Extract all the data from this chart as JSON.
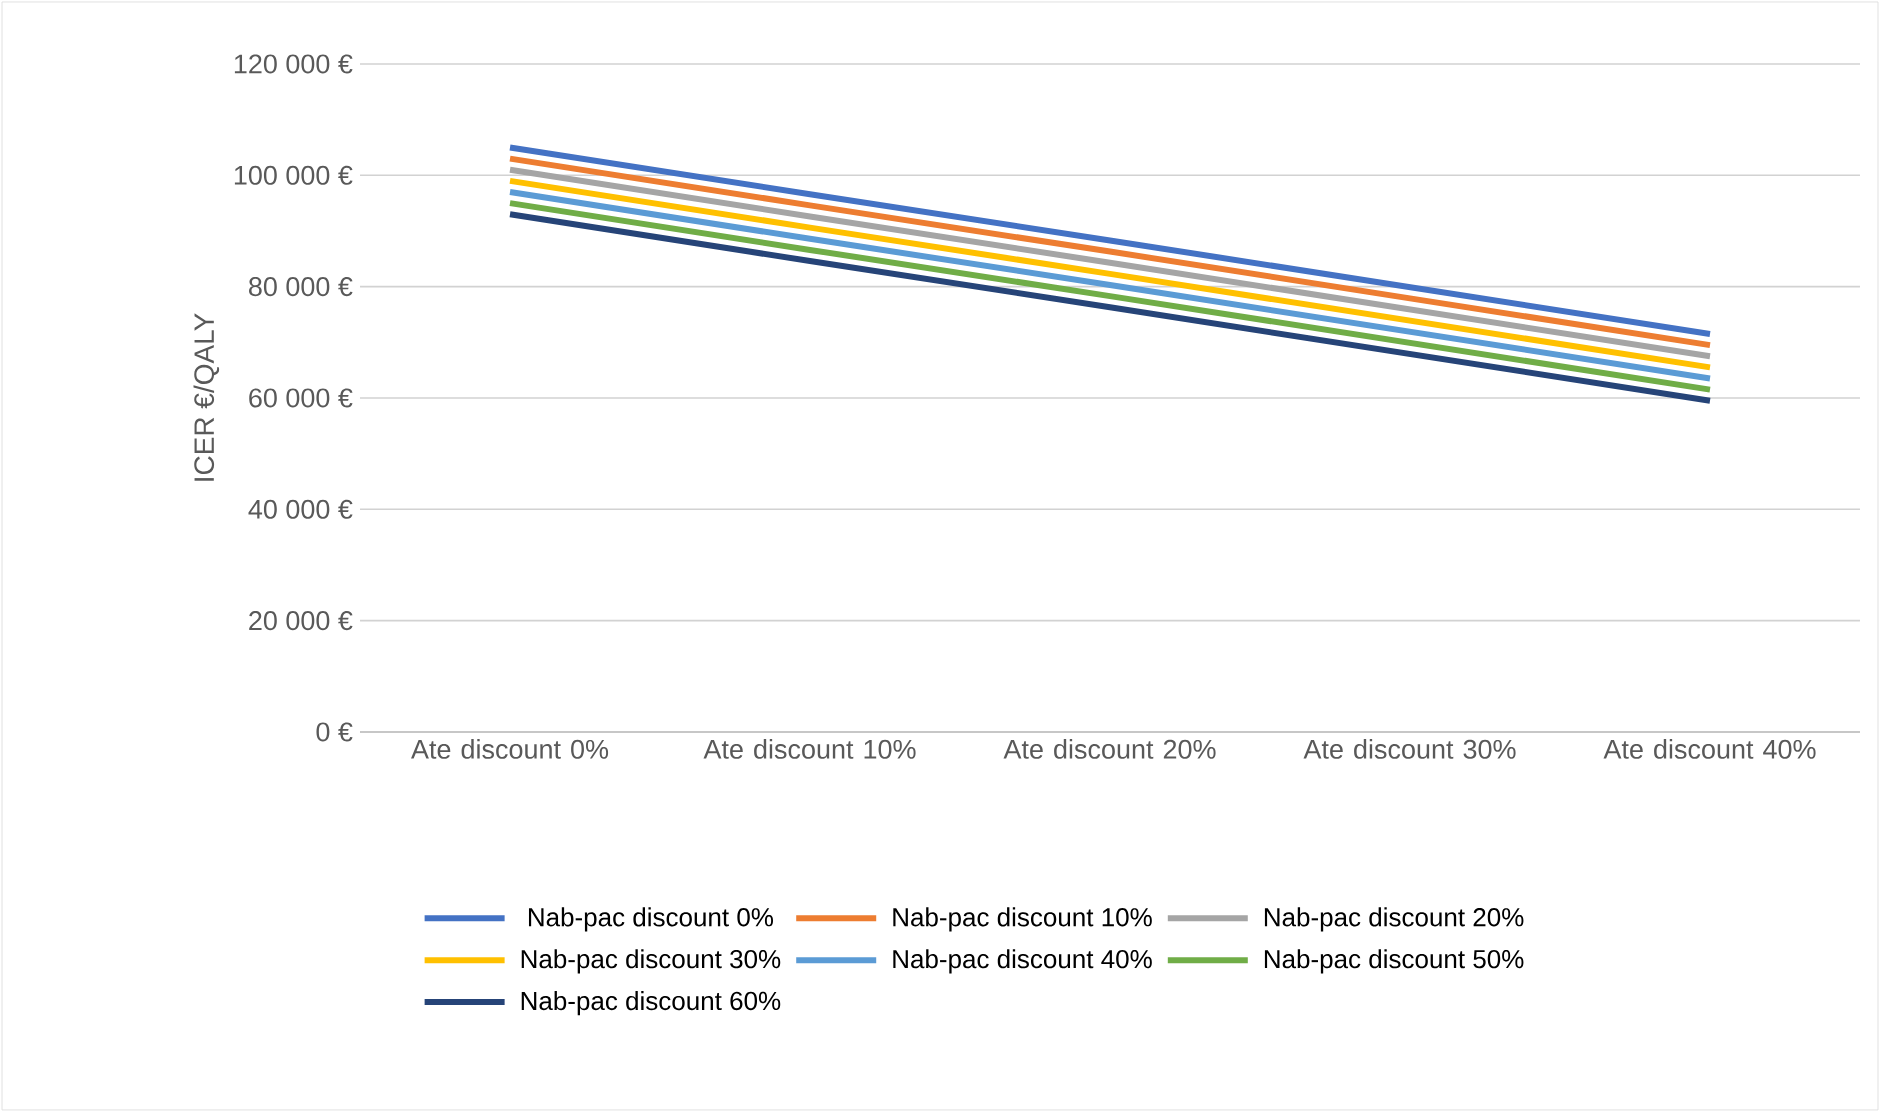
{
  "chart_data": {
    "type": "line",
    "ylabel": "ICER €/QALY",
    "categories": [
      "Ate discount 0%",
      "Ate discount 10%",
      "Ate discount 20%",
      "Ate discount 30%",
      "Ate discount 40%"
    ],
    "series": [
      {
        "name": "Nab-pac discount 0%",
        "color": "#4472c4",
        "values": [
          105000,
          96600,
          88300,
          79900,
          71500
        ]
      },
      {
        "name": "Nab-pac discount 10%",
        "color": "#ed7d31",
        "values": [
          103000,
          94600,
          86300,
          77900,
          69500
        ]
      },
      {
        "name": "Nab-pac discount 20%",
        "color": "#a5a5a5",
        "values": [
          101000,
          92600,
          84300,
          75900,
          67500
        ]
      },
      {
        "name": "Nab-pac discount 30%",
        "color": "#ffc000",
        "values": [
          99000,
          90600,
          82300,
          73900,
          65500
        ]
      },
      {
        "name": "Nab-pac discount 40%",
        "color": "#5b9bd5",
        "values": [
          97000,
          88600,
          80300,
          71900,
          63500
        ]
      },
      {
        "name": "Nab-pac discount 50%",
        "color": "#70ad47",
        "values": [
          95000,
          86600,
          78300,
          69900,
          61500
        ]
      },
      {
        "name": "Nab-pac discount 60%",
        "color": "#264478",
        "values": [
          93000,
          84600,
          76300,
          67900,
          59500
        ]
      }
    ],
    "ylim": [
      0,
      120000
    ],
    "yticks": [
      {
        "value": 0,
        "label": "0 €"
      },
      {
        "value": 20000,
        "label": "20 000 €"
      },
      {
        "value": 40000,
        "label": "40 000 €"
      },
      {
        "value": 60000,
        "label": "60 000 €"
      },
      {
        "value": 80000,
        "label": "80 000 €"
      },
      {
        "value": 100000,
        "label": "100 000 €"
      },
      {
        "value": 120000,
        "label": "120 000 €"
      }
    ],
    "grid": "y",
    "legend": "bottom",
    "line_style": "solid"
  }
}
